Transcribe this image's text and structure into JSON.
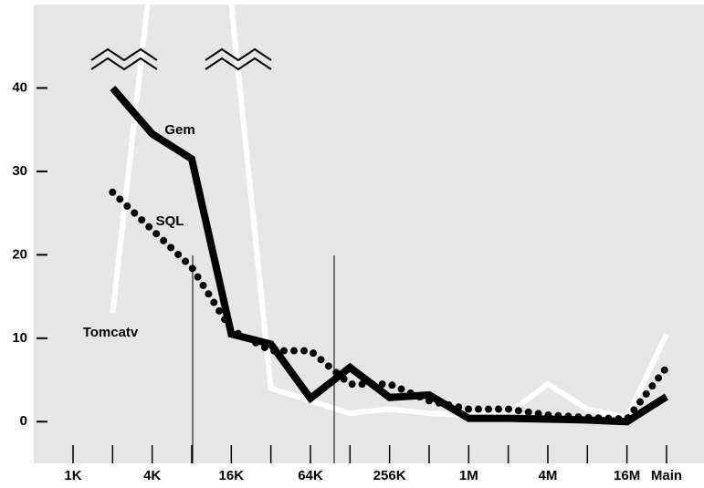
{
  "chart_data": {
    "type": "line",
    "categories": [
      "1K",
      null,
      "4K",
      null,
      "16K",
      null,
      "64K",
      null,
      "256K",
      null,
      "1M",
      null,
      "4M",
      null,
      "16M",
      "Main"
    ],
    "series": [
      {
        "name": "Tomcatv",
        "color": "#ffffff",
        "style": "solid",
        "values": [
          null,
          13,
          55,
          55,
          50,
          4,
          2.5,
          1,
          1.5,
          1,
          0.8,
          1,
          4.5,
          1.5,
          0.5,
          10.5
        ]
      },
      {
        "name": "SQL",
        "color": "#000000",
        "style": "dotted",
        "values": [
          null,
          27.5,
          23,
          18.5,
          11,
          8.5,
          8.5,
          4.5,
          4.5,
          2.5,
          1.5,
          1.5,
          0.8,
          0.5,
          0.3,
          6.5
        ]
      },
      {
        "name": "Gem",
        "color": "#000000",
        "style": "solid",
        "values": [
          null,
          40,
          34.5,
          31.5,
          10.5,
          9.3,
          2.8,
          6.5,
          2.9,
          3.2,
          0.4,
          0.4,
          0.3,
          0.2,
          0,
          3
        ]
      }
    ],
    "ylim": [
      -5,
      50
    ],
    "yticks": [
      0,
      10,
      20,
      30,
      40
    ]
  }
}
